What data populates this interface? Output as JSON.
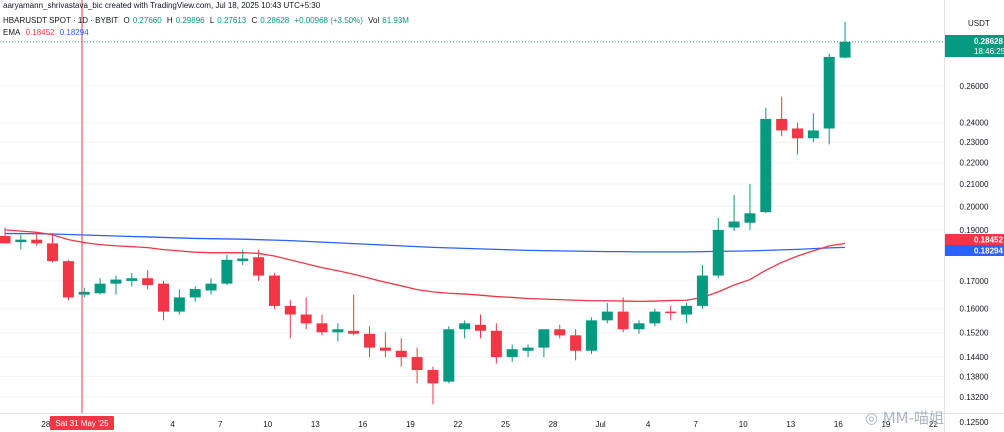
{
  "attribution": "aaryamann_shrivastava_bic created with TradingView.com, Jul 18, 2025 10:43 UTC+5:30",
  "legend": {
    "symbol": "HBARUSDT SPOT · 1D · BYBIT",
    "o_label": "O",
    "o_value": "0.27660",
    "h_label": "H",
    "h_value": "0.29896",
    "l_label": "L",
    "l_value": "0.27613",
    "c_label": "C",
    "c_value": "0.28628",
    "change": "+0.00968 (+3.50%)",
    "vol_label": "Vol",
    "vol_value": "61.93M",
    "ema_label": "EMA",
    "ema_value_1": "0.18452",
    "ema_value_2": "0.18294"
  },
  "price_axis": {
    "currency": "USDT",
    "ticks": [
      "0.26000",
      "0.24000",
      "0.23000",
      "0.22000",
      "0.21000",
      "0.20000",
      "0.19000",
      "0.17000",
      "0.16000",
      "0.15200",
      "0.14400",
      "0.13800",
      "0.13200",
      "0.12500"
    ],
    "last_price": "0.28628",
    "countdown": "18:46:25",
    "ema1_label": "0.18452",
    "ema2_label": "0.18294"
  },
  "time_axis": {
    "labels": [
      "28",
      "4",
      "7",
      "10",
      "13",
      "16",
      "19",
      "22",
      "25",
      "28",
      "Jul",
      "4",
      "7",
      "10",
      "13",
      "16",
      "19",
      "22"
    ],
    "crosshair_label": "Sat 31 May '25"
  },
  "watermark": "MM-喵姐",
  "colors": {
    "up": "#089981",
    "down": "#f23645",
    "ema_fast": "#f23645",
    "ema_slow": "#2962ff",
    "crosshair": "#f23645"
  },
  "chart_data": {
    "type": "candlestick",
    "symbol": "HBARUSDT",
    "interval": "1D",
    "scale": "log",
    "candles": [
      {
        "o": 0.1875,
        "h": 0.191,
        "l": 0.1845,
        "c": 0.1845
      },
      {
        "o": 0.185,
        "h": 0.188,
        "l": 0.182,
        "c": 0.186
      },
      {
        "o": 0.186,
        "h": 0.189,
        "l": 0.1835,
        "c": 0.1845
      },
      {
        "o": 0.1845,
        "h": 0.188,
        "l": 0.177,
        "c": 0.1775
      },
      {
        "o": 0.1775,
        "h": 0.178,
        "l": 0.163,
        "c": 0.164
      },
      {
        "o": 0.165,
        "h": 0.1675,
        "l": 0.164,
        "c": 0.166
      },
      {
        "o": 0.1655,
        "h": 0.171,
        "l": 0.165,
        "c": 0.169
      },
      {
        "o": 0.169,
        "h": 0.172,
        "l": 0.165,
        "c": 0.1705
      },
      {
        "o": 0.17,
        "h": 0.173,
        "l": 0.168,
        "c": 0.171
      },
      {
        "o": 0.171,
        "h": 0.174,
        "l": 0.167,
        "c": 0.1685
      },
      {
        "o": 0.169,
        "h": 0.17,
        "l": 0.156,
        "c": 0.159
      },
      {
        "o": 0.159,
        "h": 0.167,
        "l": 0.158,
        "c": 0.164
      },
      {
        "o": 0.164,
        "h": 0.168,
        "l": 0.1625,
        "c": 0.167
      },
      {
        "o": 0.1665,
        "h": 0.171,
        "l": 0.165,
        "c": 0.169
      },
      {
        "o": 0.169,
        "h": 0.18,
        "l": 0.1685,
        "c": 0.178
      },
      {
        "o": 0.1775,
        "h": 0.182,
        "l": 0.176,
        "c": 0.1785
      },
      {
        "o": 0.179,
        "h": 0.182,
        "l": 0.17,
        "c": 0.172
      },
      {
        "o": 0.172,
        "h": 0.173,
        "l": 0.16,
        "c": 0.161
      },
      {
        "o": 0.161,
        "h": 0.163,
        "l": 0.15,
        "c": 0.158
      },
      {
        "o": 0.158,
        "h": 0.164,
        "l": 0.153,
        "c": 0.155
      },
      {
        "o": 0.155,
        "h": 0.158,
        "l": 0.151,
        "c": 0.152
      },
      {
        "o": 0.152,
        "h": 0.155,
        "l": 0.149,
        "c": 0.153
      },
      {
        "o": 0.1525,
        "h": 0.165,
        "l": 0.151,
        "c": 0.1515
      },
      {
        "o": 0.1515,
        "h": 0.154,
        "l": 0.144,
        "c": 0.147
      },
      {
        "o": 0.147,
        "h": 0.152,
        "l": 0.144,
        "c": 0.146
      },
      {
        "o": 0.146,
        "h": 0.15,
        "l": 0.141,
        "c": 0.144
      },
      {
        "o": 0.144,
        "h": 0.147,
        "l": 0.136,
        "c": 0.14
      },
      {
        "o": 0.14,
        "h": 0.141,
        "l": 0.13,
        "c": 0.136
      },
      {
        "o": 0.1365,
        "h": 0.154,
        "l": 0.136,
        "c": 0.153
      },
      {
        "o": 0.153,
        "h": 0.156,
        "l": 0.15,
        "c": 0.155
      },
      {
        "o": 0.1545,
        "h": 0.158,
        "l": 0.15,
        "c": 0.1525
      },
      {
        "o": 0.1525,
        "h": 0.155,
        "l": 0.142,
        "c": 0.144
      },
      {
        "o": 0.144,
        "h": 0.148,
        "l": 0.1425,
        "c": 0.1465
      },
      {
        "o": 0.146,
        "h": 0.148,
        "l": 0.144,
        "c": 0.147
      },
      {
        "o": 0.147,
        "h": 0.153,
        "l": 0.144,
        "c": 0.153
      },
      {
        "o": 0.153,
        "h": 0.1545,
        "l": 0.15,
        "c": 0.151
      },
      {
        "o": 0.151,
        "h": 0.153,
        "l": 0.143,
        "c": 0.146
      },
      {
        "o": 0.146,
        "h": 0.157,
        "l": 0.145,
        "c": 0.156
      },
      {
        "o": 0.156,
        "h": 0.162,
        "l": 0.155,
        "c": 0.159
      },
      {
        "o": 0.159,
        "h": 0.164,
        "l": 0.152,
        "c": 0.153
      },
      {
        "o": 0.153,
        "h": 0.156,
        "l": 0.1515,
        "c": 0.155
      },
      {
        "o": 0.155,
        "h": 0.16,
        "l": 0.154,
        "c": 0.159
      },
      {
        "o": 0.159,
        "h": 0.161,
        "l": 0.156,
        "c": 0.1585
      },
      {
        "o": 0.158,
        "h": 0.162,
        "l": 0.155,
        "c": 0.161
      },
      {
        "o": 0.161,
        "h": 0.176,
        "l": 0.16,
        "c": 0.172
      },
      {
        "o": 0.172,
        "h": 0.195,
        "l": 0.171,
        "c": 0.19
      },
      {
        "o": 0.191,
        "h": 0.205,
        "l": 0.1895,
        "c": 0.1935
      },
      {
        "o": 0.193,
        "h": 0.21,
        "l": 0.19,
        "c": 0.197
      },
      {
        "o": 0.1975,
        "h": 0.248,
        "l": 0.197,
        "c": 0.242
      },
      {
        "o": 0.242,
        "h": 0.254,
        "l": 0.233,
        "c": 0.236
      },
      {
        "o": 0.237,
        "h": 0.24,
        "l": 0.224,
        "c": 0.232
      },
      {
        "o": 0.232,
        "h": 0.245,
        "l": 0.23,
        "c": 0.236
      },
      {
        "o": 0.237,
        "h": 0.279,
        "l": 0.229,
        "c": 0.277
      },
      {
        "o": 0.2766,
        "h": 0.299,
        "l": 0.2761,
        "c": 0.2863
      }
    ],
    "ema_fast": [
      0.19,
      0.1895,
      0.189,
      0.188,
      0.186,
      0.1848,
      0.184,
      0.1835,
      0.1832,
      0.1828,
      0.182,
      0.1815,
      0.181,
      0.1808,
      0.1808,
      0.1808,
      0.1805,
      0.1795,
      0.178,
      0.1765,
      0.175,
      0.1738,
      0.1725,
      0.171,
      0.1695,
      0.1682,
      0.1668,
      0.166,
      0.1655,
      0.1652,
      0.1648,
      0.1643,
      0.164,
      0.1636,
      0.1634,
      0.1632,
      0.163,
      0.1628,
      0.1628,
      0.1627,
      0.1626,
      0.1627,
      0.1629,
      0.163,
      0.164,
      0.166,
      0.1685,
      0.1705,
      0.174,
      0.177,
      0.1795,
      0.1815,
      0.1835,
      0.1845
    ],
    "ema_slow": [
      0.1885,
      0.1885,
      0.1884,
      0.1883,
      0.1881,
      0.1879,
      0.1877,
      0.1875,
      0.1873,
      0.1871,
      0.1869,
      0.1867,
      0.1865,
      0.1864,
      0.1863,
      0.1862,
      0.186,
      0.1858,
      0.1856,
      0.1853,
      0.185,
      0.1847,
      0.1844,
      0.1841,
      0.1838,
      0.1835,
      0.1832,
      0.1829,
      0.1827,
      0.1825,
      0.1823,
      0.1821,
      0.1819,
      0.1817,
      0.1816,
      0.1815,
      0.1814,
      0.1813,
      0.1812,
      0.1812,
      0.1811,
      0.1811,
      0.1811,
      0.1811,
      0.1812,
      0.1813,
      0.1814,
      0.1815,
      0.1817,
      0.1819,
      0.1821,
      0.1824,
      0.1827,
      0.1829
    ]
  }
}
